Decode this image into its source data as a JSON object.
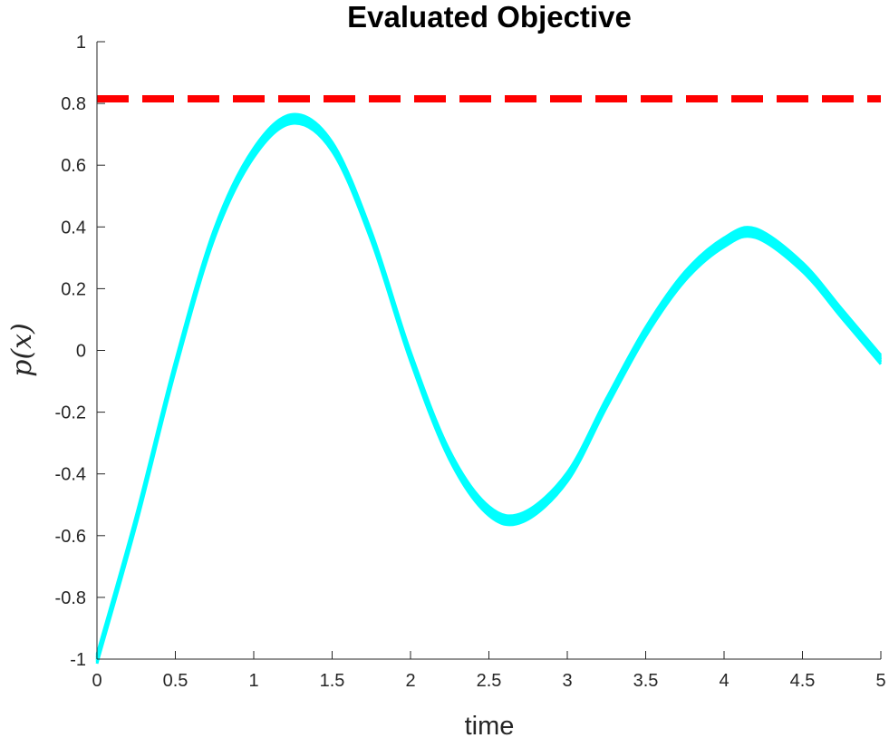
{
  "chart_data": {
    "type": "line",
    "title": "Evaluated Objective",
    "xlabel": "time",
    "ylabel": "p(x)",
    "xlim": [
      0,
      5
    ],
    "ylim": [
      -1,
      1
    ],
    "xticks": [
      "0",
      "0.5",
      "1",
      "1.5",
      "2",
      "2.5",
      "3",
      "3.5",
      "4",
      "4.5",
      "5"
    ],
    "yticks": [
      "-1",
      "-0.8",
      "-0.6",
      "-0.4",
      "-0.2",
      "0",
      "0.2",
      "0.4",
      "0.6",
      "0.8",
      "1"
    ],
    "grid": false,
    "series": [
      {
        "color": "#00FFFF",
        "style": "solid",
        "description_points": [
          [
            0,
            -1
          ],
          [
            0.25,
            -0.55
          ],
          [
            0.5,
            -0.05
          ],
          [
            0.75,
            0.38
          ],
          [
            1.0,
            0.64
          ],
          [
            1.25,
            0.75
          ],
          [
            1.5,
            0.66
          ],
          [
            1.75,
            0.37
          ],
          [
            2.0,
            -0.02
          ],
          [
            2.25,
            -0.34
          ],
          [
            2.5,
            -0.52
          ],
          [
            2.72,
            -0.54
          ],
          [
            3.0,
            -0.41
          ],
          [
            3.25,
            -0.17
          ],
          [
            3.5,
            0.06
          ],
          [
            3.75,
            0.24
          ],
          [
            4.0,
            0.35
          ],
          [
            4.2,
            0.38
          ],
          [
            4.5,
            0.27
          ],
          [
            4.75,
            0.12
          ],
          [
            5.0,
            -0.03
          ]
        ]
      },
      {
        "color": "#FF0000",
        "style": "dashed",
        "x": [
          0,
          5
        ],
        "y": [
          0.815,
          0.815
        ]
      }
    ]
  }
}
